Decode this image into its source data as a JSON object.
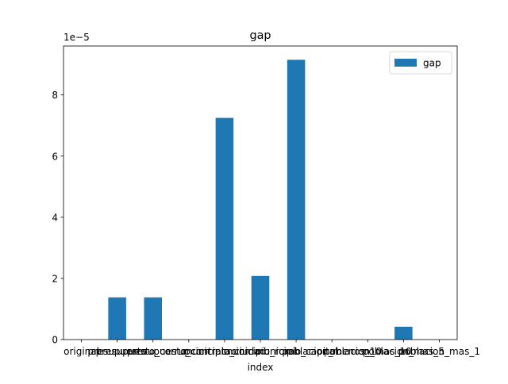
{
  "chart_data": {
    "type": "bar",
    "title": "gap",
    "xlabel": "index",
    "ylabel": "",
    "scale_label": "1e−5",
    "categories": [
      "original",
      "presupuesto",
      "presupuesto_corrupcion",
      "presupuesto_contratacion",
      "municipio_ciudad",
      "municipio_rural",
      "municipio_capital",
      "poblacion_menos_10",
      "poblacion_mas_10",
      "poblacion_mas_5",
      "poblacion_mas_1"
    ],
    "series": [
      {
        "name": "gap",
        "color": "#1f77b4",
        "values": [
          0,
          1.38e-05,
          1.38e-05,
          0,
          7.25e-05,
          2.08e-05,
          9.15e-05,
          0,
          0,
          4.2e-06,
          0
        ]
      }
    ],
    "yticks": [
      0,
      2e-05,
      4e-05,
      6e-05,
      8e-05
    ],
    "ytick_labels": [
      "0",
      "2",
      "4",
      "6",
      "8"
    ],
    "ylim": [
      0,
      9.6e-05
    ],
    "legend_position": "upper right",
    "grid": false
  }
}
